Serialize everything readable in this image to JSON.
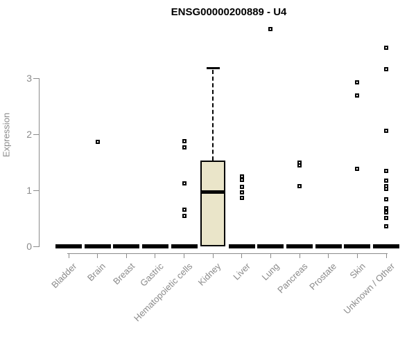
{
  "title": "ENSG00000200889 - U4",
  "chart_data": {
    "type": "boxplot",
    "title": "ENSG00000200889 - U4",
    "xlabel": "",
    "ylabel": "Expression",
    "ylim": [
      0,
      3.95
    ],
    "yticks": [
      0,
      1,
      2,
      3
    ],
    "grid": false,
    "legend": "none",
    "categories": [
      "Bladder",
      "Brain",
      "Breast",
      "Gastric",
      "Hematopoietic cells",
      "Kidney",
      "Liver",
      "Lung",
      "Pancreas",
      "Prostate",
      "Skin",
      "Unknown / Other"
    ],
    "groups": [
      {
        "name": "Bladder",
        "q1": 0,
        "median": 0,
        "q3": 0,
        "whisker_low": 0,
        "whisker_high": 0,
        "outliers": []
      },
      {
        "name": "Brain",
        "q1": 0,
        "median": 0,
        "q3": 0,
        "whisker_low": 0,
        "whisker_high": 0,
        "outliers": [
          1.86
        ]
      },
      {
        "name": "Breast",
        "q1": 0,
        "median": 0,
        "q3": 0,
        "whisker_low": 0,
        "whisker_high": 0,
        "outliers": []
      },
      {
        "name": "Gastric",
        "q1": 0,
        "median": 0,
        "q3": 0,
        "whisker_low": 0,
        "whisker_high": 0,
        "outliers": []
      },
      {
        "name": "Hematopoietic cells",
        "q1": 0,
        "median": 0,
        "q3": 0,
        "whisker_low": 0,
        "whisker_high": 0,
        "outliers": [
          1.88,
          1.77,
          1.12,
          0.65,
          0.54
        ]
      },
      {
        "name": "Kidney",
        "q1": 0,
        "median": 0.98,
        "q3": 1.53,
        "whisker_low": 0,
        "whisker_high": 3.19,
        "outliers": []
      },
      {
        "name": "Liver",
        "q1": 0,
        "median": 0,
        "q3": 0,
        "whisker_low": 0,
        "whisker_high": 0,
        "outliers": [
          1.25,
          1.19,
          1.06,
          0.96,
          0.86
        ]
      },
      {
        "name": "Lung",
        "q1": 0,
        "median": 0,
        "q3": 0,
        "whisker_low": 0,
        "whisker_high": 0,
        "outliers": [
          3.88
        ]
      },
      {
        "name": "Pancreas",
        "q1": 0,
        "median": 0,
        "q3": 0,
        "whisker_low": 0,
        "whisker_high": 0,
        "outliers": [
          1.5,
          1.44,
          1.08
        ]
      },
      {
        "name": "Prostate",
        "q1": 0,
        "median": 0,
        "q3": 0,
        "whisker_low": 0,
        "whisker_high": 0,
        "outliers": []
      },
      {
        "name": "Skin",
        "q1": 0,
        "median": 0,
        "q3": 0,
        "whisker_low": 0,
        "whisker_high": 0,
        "outliers": [
          2.93,
          2.69,
          1.38
        ]
      },
      {
        "name": "Unknown / Other",
        "q1": 0,
        "median": 0,
        "q3": 0,
        "whisker_low": 0,
        "whisker_high": 0,
        "outliers": [
          3.54,
          3.16,
          2.06,
          1.35,
          1.17,
          1.07,
          1.02,
          0.84,
          0.68,
          0.61,
          0.51,
          0.36
        ]
      }
    ],
    "colors": {
      "box_fill": "#EAE5C9",
      "box_border": "#000000",
      "median": "#000000",
      "outlier_border": "#000000",
      "axis": "#8a8a8a",
      "tick_labels": "#8a8a8a",
      "title": "#000000",
      "background": "#ffffff"
    }
  }
}
